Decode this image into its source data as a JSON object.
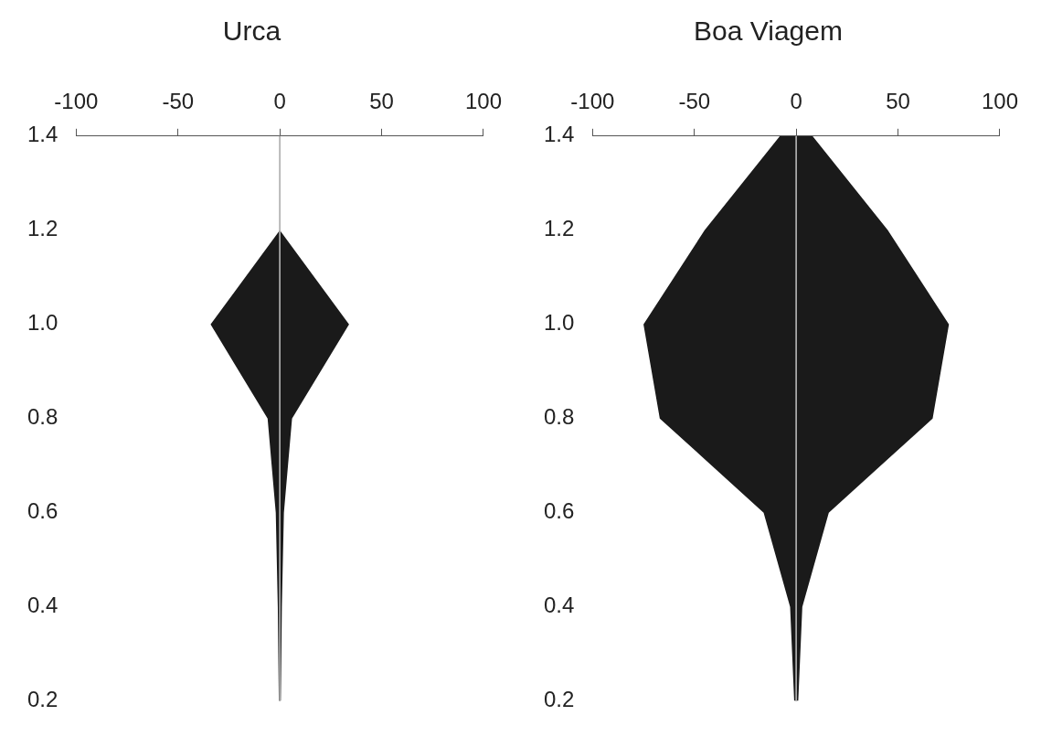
{
  "chart_data": [
    {
      "type": "line",
      "title": "Urca",
      "orientation": "horizontal",
      "categories": [
        "1.4",
        "1.2",
        "1.0",
        "0.8",
        "0.6",
        "0.4",
        "0.2"
      ],
      "xlim": [
        -100,
        100
      ],
      "xticks": [
        -100,
        -50,
        0,
        50,
        100
      ],
      "grid": false,
      "legend": false,
      "series": [
        {
          "color": "#b0b0b0",
          "values": [
            0,
            0,
            0,
            0,
            0,
            0,
            0
          ],
          "upper": [
            0,
            0,
            34,
            6,
            2,
            1,
            0.5
          ],
          "lower": [
            0,
            0,
            -34,
            -6,
            -2,
            -1,
            -0.5
          ]
        }
      ]
    },
    {
      "type": "line",
      "title": "Boa Viagem",
      "orientation": "horizontal",
      "categories": [
        "1.4",
        "1.2",
        "1.0",
        "0.8",
        "0.6",
        "0.4",
        "0.2"
      ],
      "xlim": [
        -100,
        100
      ],
      "xticks": [
        -100,
        -50,
        0,
        50,
        100
      ],
      "grid": false,
      "legend": false,
      "series": [
        {
          "color": "#b0b0b0",
          "values": [
            0,
            0,
            0,
            0,
            0,
            0,
            0
          ],
          "upper": [
            8,
            45,
            75,
            67,
            16,
            3,
            1
          ],
          "lower": [
            -8,
            -45,
            -75,
            -67,
            -16,
            -3,
            -1
          ]
        }
      ]
    }
  ]
}
